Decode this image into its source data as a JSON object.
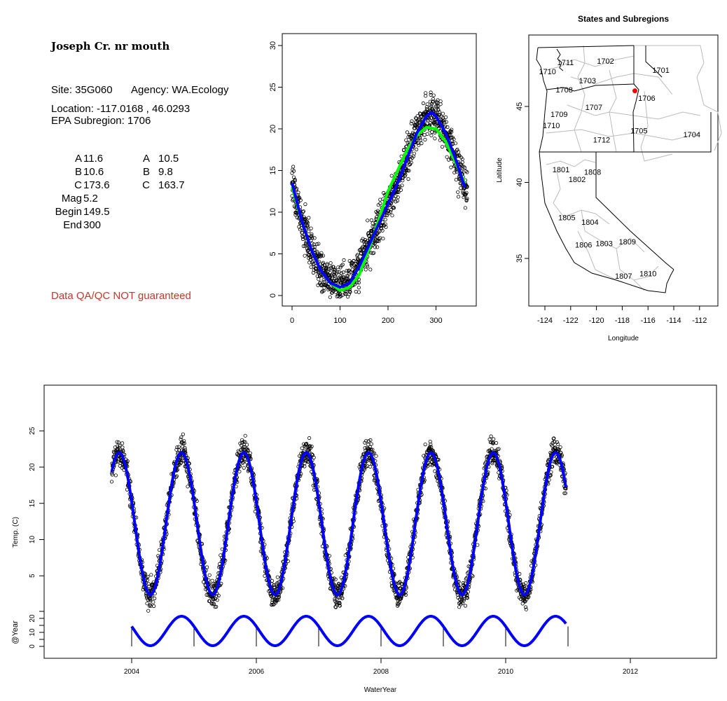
{
  "info": {
    "title": "Joseph Cr. nr mouth",
    "site": "Site: 35G060",
    "agency": "Agency: WA.Ecology",
    "location": "Location: -117.0168 , 46.0293",
    "subregion": "EPA Subregion: 1706",
    "params_left": [
      {
        "label": "A",
        "value": "11.6"
      },
      {
        "label": "B",
        "value": "10.6"
      },
      {
        "label": "C",
        "value": "173.6"
      },
      {
        "label": "Mag",
        "value": "5.2"
      },
      {
        "label": "Begin",
        "value": "149.5"
      },
      {
        "label": "End",
        "value": "300"
      }
    ],
    "params_right": [
      {
        "label": "A",
        "value": "10.5"
      },
      {
        "label": "B",
        "value": "9.8"
      },
      {
        "label": "C",
        "value": "163.7"
      }
    ],
    "warning": "Data QA/QC NOT guaranteed"
  },
  "chart_data": [
    {
      "type": "scatter",
      "title": "",
      "xlabel": "",
      "ylabel": "",
      "xlim": [
        -5,
        370
      ],
      "ylim": [
        -1,
        31
      ],
      "x_ticks": [
        "0",
        "100",
        "200",
        "300"
      ],
      "y_ticks": [
        "0",
        "5",
        "10",
        "15",
        "20",
        "25",
        "30"
      ],
      "series": [
        {
          "name": "fit-blue",
          "color": "#0000ff",
          "x": [
            0,
            20,
            40,
            60,
            80,
            100,
            120,
            140,
            160,
            180,
            200,
            220,
            240,
            260,
            280,
            290,
            300,
            320,
            340,
            360
          ],
          "y": [
            13.5,
            9,
            5.5,
            3,
            1.5,
            1,
            1.5,
            3.5,
            6,
            8.5,
            11,
            13.5,
            16.5,
            19.5,
            21.5,
            22,
            21.5,
            19.5,
            16.5,
            13
          ]
        },
        {
          "name": "fit-green",
          "color": "#00ff00",
          "x": [
            0,
            20,
            40,
            60,
            80,
            100,
            120,
            140,
            160,
            180,
            200,
            220,
            240,
            260,
            280,
            300,
            320,
            340,
            360
          ],
          "y": [
            13,
            9,
            5.5,
            3,
            1.5,
            0.6,
            1,
            2.5,
            5.5,
            9,
            12.5,
            15,
            17.5,
            19.2,
            20.2,
            20,
            18.5,
            16,
            13.5
          ]
        }
      ],
      "noise_sd": 2.0
    },
    {
      "type": "map",
      "title": "States and Subregions",
      "xlabel": "Longitude",
      "ylabel": "Latitude",
      "x_ticks": [
        "-124",
        "-122",
        "-120",
        "-118",
        "-116",
        "-114",
        "-112"
      ],
      "y_ticks": [
        "35",
        "40",
        "45"
      ],
      "site": {
        "lon": -117.0168,
        "lat": 46.0293,
        "color": "#ff0000"
      },
      "regions": [
        {
          "name": "1711",
          "lon": -122.4,
          "lat": 47.9
        },
        {
          "name": "1702",
          "lon": -119.3,
          "lat": 48.0
        },
        {
          "name": "1710",
          "lon": -123.8,
          "lat": 47.3
        },
        {
          "name": "1701",
          "lon": -115.0,
          "lat": 47.4
        },
        {
          "name": "1703",
          "lon": -120.7,
          "lat": 46.7
        },
        {
          "name": "1708",
          "lon": -122.5,
          "lat": 46.1
        },
        {
          "name": "1706",
          "lon": -116.1,
          "lat": 45.55
        },
        {
          "name": "1707",
          "lon": -120.2,
          "lat": 44.95
        },
        {
          "name": "1709",
          "lon": -122.9,
          "lat": 44.5
        },
        {
          "name": "1710",
          "lon": -123.5,
          "lat": 43.75
        },
        {
          "name": "1705",
          "lon": -116.7,
          "lat": 43.4
        },
        {
          "name": "1704",
          "lon": -112.6,
          "lat": 43.15
        },
        {
          "name": "1712",
          "lon": -119.6,
          "lat": 42.8
        },
        {
          "name": "1801",
          "lon": -122.75,
          "lat": 40.85
        },
        {
          "name": "1808",
          "lon": -120.3,
          "lat": 40.7
        },
        {
          "name": "1802",
          "lon": -121.5,
          "lat": 40.2
        },
        {
          "name": "1805",
          "lon": -122.3,
          "lat": 37.7
        },
        {
          "name": "1804",
          "lon": -120.5,
          "lat": 37.4
        },
        {
          "name": "1806",
          "lon": -121.0,
          "lat": 35.9
        },
        {
          "name": "1803",
          "lon": -119.4,
          "lat": 36.0
        },
        {
          "name": "1809",
          "lon": -117.6,
          "lat": 36.1
        },
        {
          "name": "1807",
          "lon": -117.9,
          "lat": 33.85
        },
        {
          "name": "1810",
          "lon": -116.0,
          "lat": 34.0
        }
      ]
    },
    {
      "type": "line",
      "title": "",
      "xlabel": "WaterYear",
      "ylabel": "Temp. (C)",
      "ylabel2": "@Year",
      "x_ticks": [
        "2004",
        "2006",
        "2008",
        "2010",
        "2012"
      ],
      "y_ticks": [
        "5",
        "10",
        "15",
        "20",
        "25"
      ],
      "y2_ticks": [
        "0",
        "10",
        "20"
      ],
      "x_range": [
        2003.68,
        2010.97
      ],
      "fit": {
        "mean": 12.2,
        "amplitude": 9.8,
        "peak_fraction_of_year": 0.8,
        "color": "#0000ff"
      },
      "year_fit": {
        "mean": 11,
        "amplitude": 10.5,
        "peak_fraction_of_year": 0.8
      },
      "noise_sd": 1.6
    }
  ]
}
